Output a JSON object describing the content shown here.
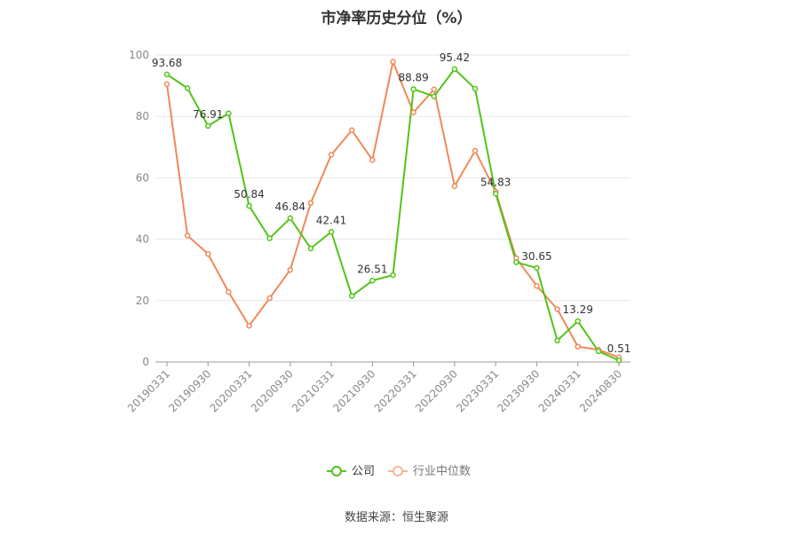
{
  "chart_data": {
    "type": "line",
    "title": "市净率历史分位（%）",
    "source": "数据来源：恒生聚源",
    "xlabel": "",
    "ylabel": "",
    "ylim": [
      0,
      100
    ],
    "yticks": [
      0,
      20,
      40,
      60,
      80,
      100
    ],
    "grid": true,
    "legend_position": "bottom",
    "categories": [
      "20190331",
      "20190630",
      "20190930",
      "20191231",
      "20200331",
      "20200630",
      "20200930",
      "20201231",
      "20210331",
      "20210630",
      "20210930",
      "20211231",
      "20220331",
      "20220630",
      "20220930",
      "20221231",
      "20230331",
      "20230630",
      "20230930",
      "20231231",
      "20240331",
      "20240630",
      "20240830"
    ],
    "xtick_labels": [
      "20190331",
      "20190930",
      "20200331",
      "20200930",
      "20210331",
      "20210930",
      "20220331",
      "20220930",
      "20230331",
      "20230930",
      "20240331",
      "20240830"
    ],
    "series": [
      {
        "name": "公司",
        "color": "#52c41a",
        "values": [
          93.68,
          89.2,
          76.91,
          81.0,
          50.84,
          40.3,
          46.84,
          37.0,
          42.41,
          21.5,
          26.51,
          28.3,
          88.89,
          86.5,
          95.42,
          89.0,
          54.83,
          32.5,
          30.65,
          7.0,
          13.29,
          3.5,
          0.51
        ],
        "labels": {
          "0": "93.68",
          "2": "76.91",
          "4": "50.84",
          "6": "46.84",
          "8": "42.41",
          "10": "26.51",
          "12": "88.89",
          "14": "95.42",
          "16": "54.83",
          "18": "30.65",
          "20": "13.29",
          "22": "0.51"
        }
      },
      {
        "name": "行业中位数",
        "color": "#f0895a",
        "values": [
          90.5,
          41.2,
          35.2,
          22.8,
          11.8,
          20.8,
          30.0,
          51.8,
          67.5,
          75.5,
          65.8,
          97.8,
          81.3,
          88.8,
          57.3,
          68.8,
          55.5,
          33.8,
          24.8,
          17.2,
          5.0,
          4.0,
          1.5
        ]
      }
    ]
  }
}
